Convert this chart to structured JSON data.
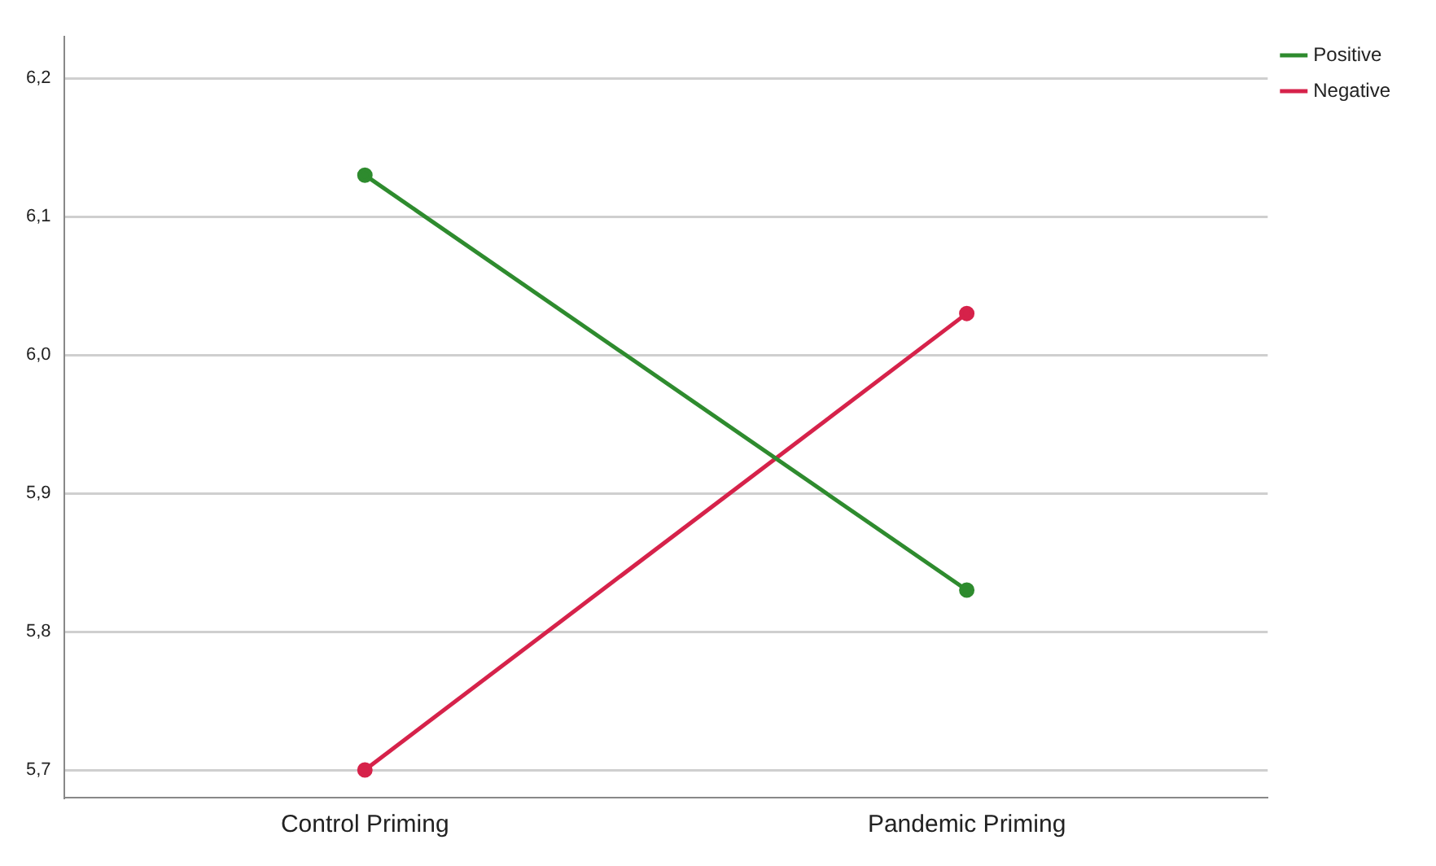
{
  "chart_data": {
    "type": "line",
    "categories": [
      "Control Priming",
      "Pandemic Priming"
    ],
    "series": [
      {
        "name": "Positive",
        "color": "#2e8b2e",
        "values": [
          6.13,
          5.83
        ]
      },
      {
        "name": "Negative",
        "color": "#d6224a",
        "values": [
          5.7,
          6.03
        ]
      }
    ],
    "ylim": [
      5.68,
      6.23
    ],
    "yticks": [
      {
        "value": 5.7,
        "label": "5,7"
      },
      {
        "value": 5.8,
        "label": "5,8"
      },
      {
        "value": 5.9,
        "label": "5,9"
      },
      {
        "value": 6.0,
        "label": "6,0"
      },
      {
        "value": 6.1,
        "label": "6,1"
      },
      {
        "value": 6.2,
        "label": "6,2"
      }
    ],
    "grid": "y",
    "legend": "top right",
    "marker": "circle",
    "line_style": "solid"
  }
}
